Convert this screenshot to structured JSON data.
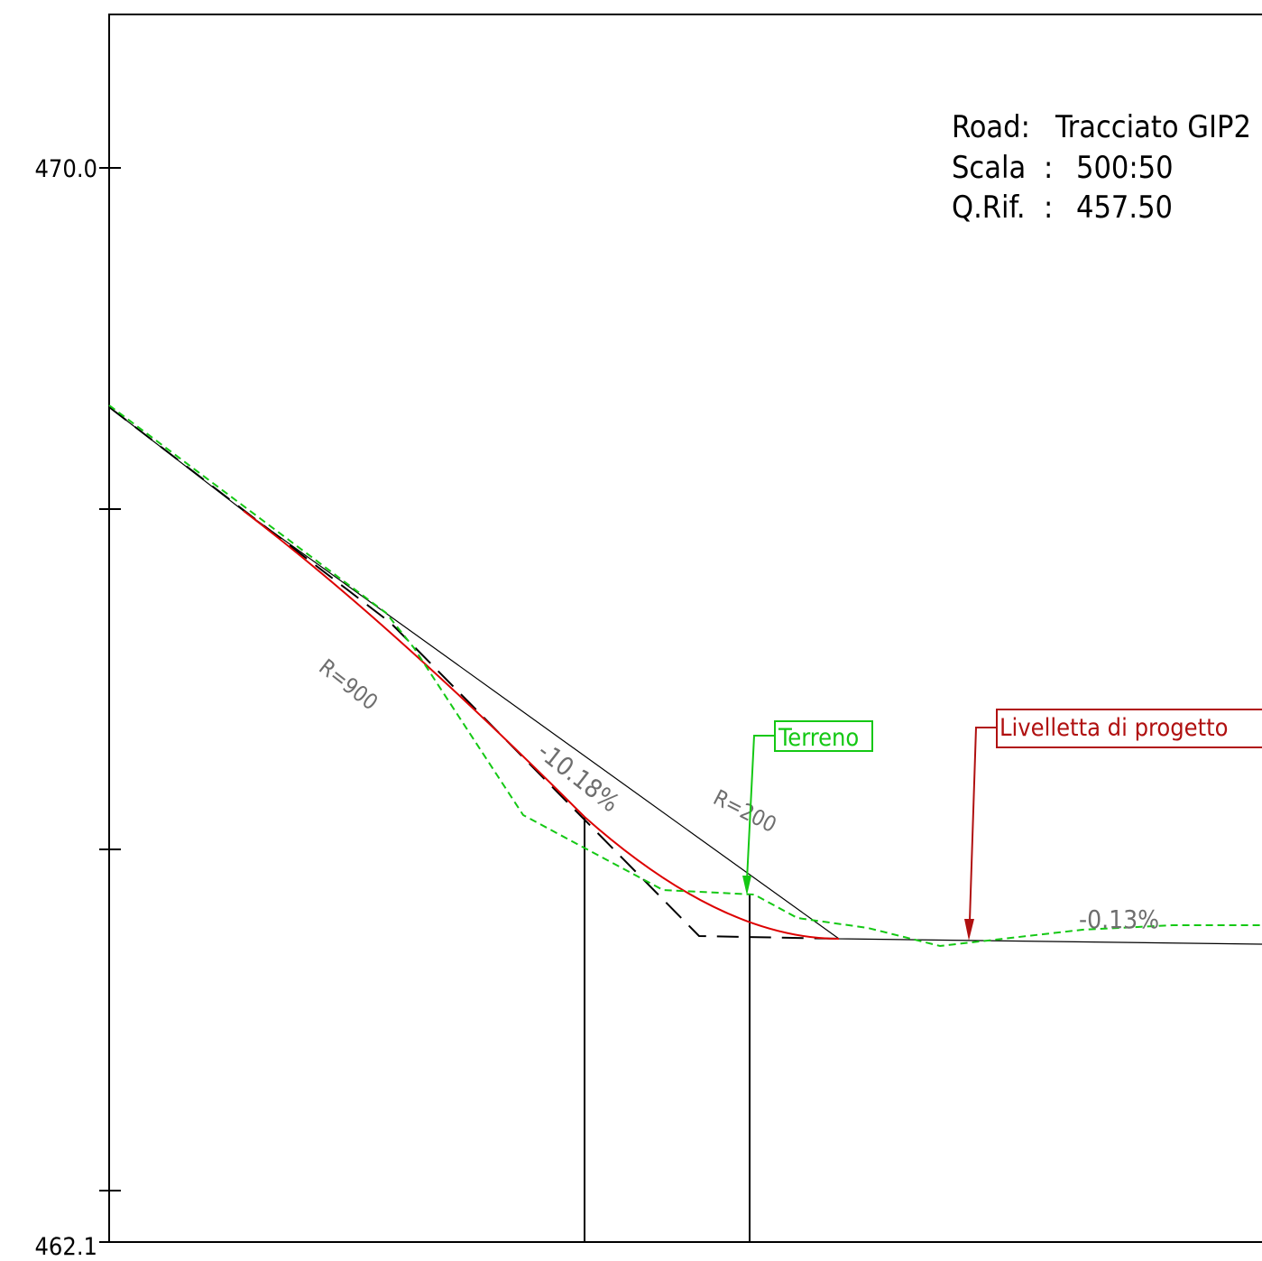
{
  "axis": {
    "top_label": "470.0",
    "bottom_label": "462.1"
  },
  "info_block": {
    "road_key": "Road:",
    "road_value": "Tracciato GIP2",
    "scale_key": "Scala",
    "scale_sep": ":",
    "scale_value": "500:50",
    "ref_key": "Q.Rif.",
    "ref_sep": ":",
    "ref_value": "457.50"
  },
  "annotations": {
    "slope_1": "-10.18%",
    "slope_2": "-0.13%",
    "radius_1": "R=900",
    "radius_2": "R=200"
  },
  "callouts": {
    "terrain": "Terreno",
    "design": "Livelletta di progetto"
  },
  "colors": {
    "frame": "#000000",
    "terrain": "#14c814",
    "design_curve": "#dd0000",
    "design_callout": "#b01010",
    "annotation_text": "#6e6e6e"
  }
}
